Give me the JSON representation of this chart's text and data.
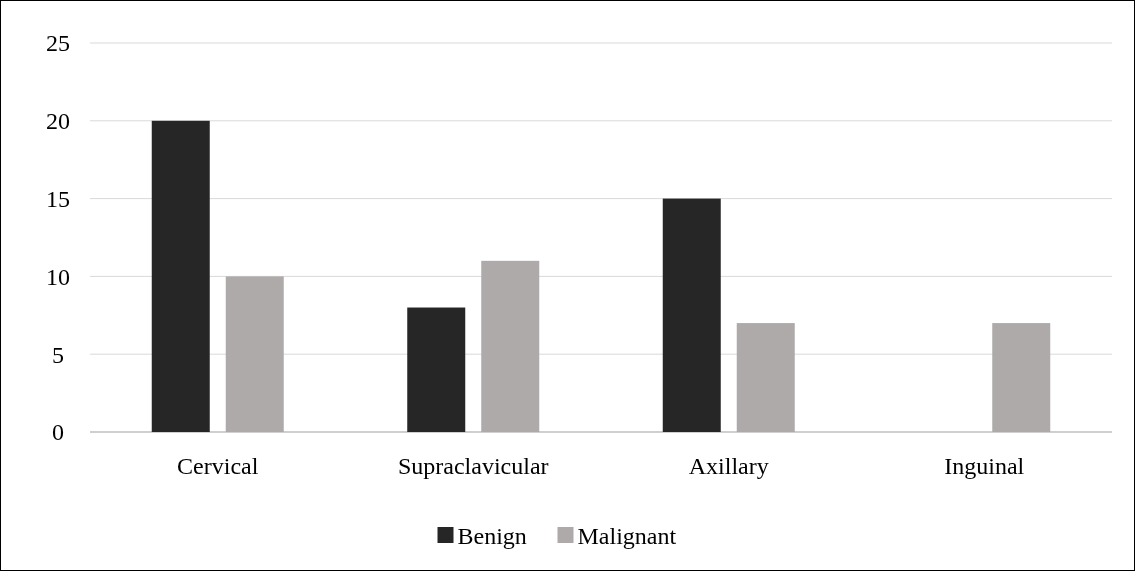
{
  "chart_data": {
    "type": "bar",
    "categories": [
      "Cervical",
      "Supraclavicular",
      "Axillary",
      "Inguinal"
    ],
    "series": [
      {
        "name": "Benign",
        "color": "#262626",
        "values": [
          20,
          8,
          15,
          0
        ]
      },
      {
        "name": "Malignant",
        "color": "#aeaaaa",
        "values": [
          10,
          11,
          7,
          7
        ]
      }
    ],
    "ylim": [
      0,
      25
    ],
    "yticks": [
      0,
      5,
      10,
      15,
      20,
      25
    ],
    "grid": "y",
    "legend": "bottom"
  }
}
